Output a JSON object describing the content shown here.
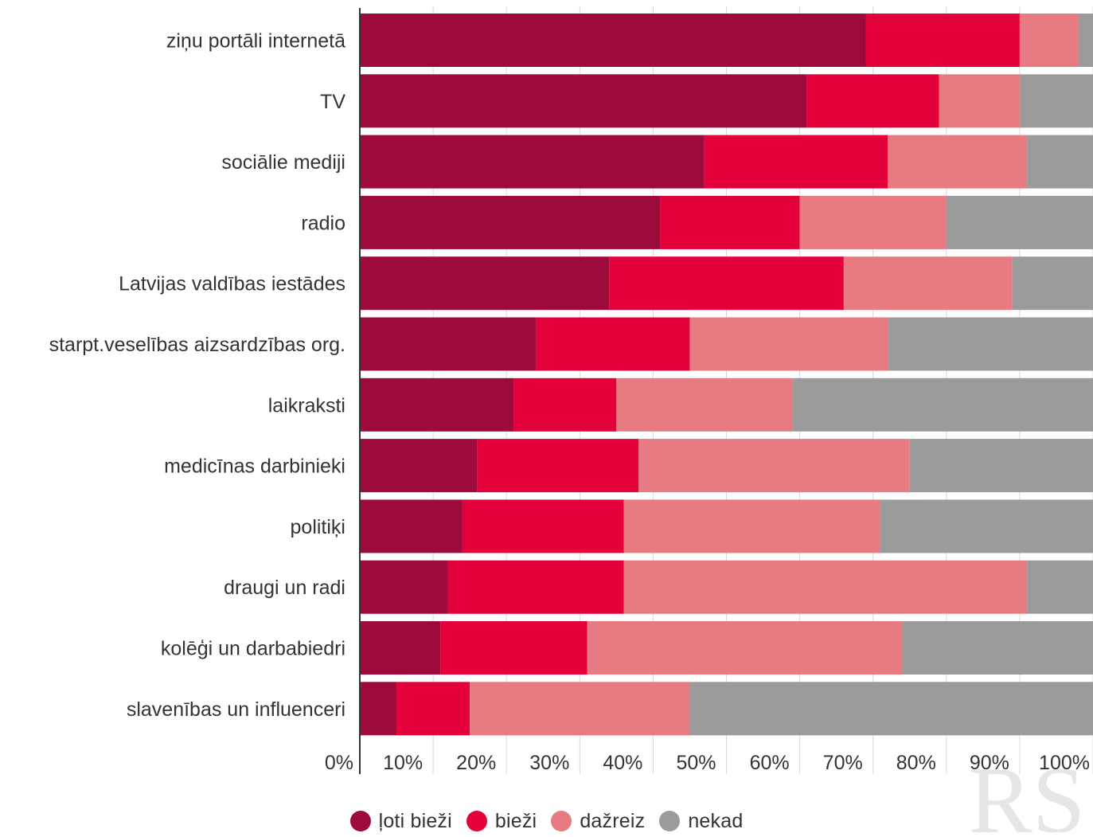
{
  "chart_data": {
    "type": "bar",
    "orientation": "horizontal",
    "stacked": true,
    "percent_stacked": true,
    "categories": [
      "ziņu portāli internetā",
      "TV",
      "sociālie mediji",
      "radio",
      "Latvijas valdības iestādes",
      "starpt.veselības aizsardzības org.",
      "laikraksti",
      "medicīnas darbinieki",
      "politiķi",
      "draugi un radi",
      "kolēģi un darbabiedri",
      "slavenības un influenceri"
    ],
    "series": [
      {
        "name": "ļoti bieži",
        "color": "#9e0a3c",
        "values": [
          69,
          61,
          47,
          41,
          34,
          24,
          21,
          16,
          14,
          12,
          11,
          5
        ]
      },
      {
        "name": "bieži",
        "color": "#e4003a",
        "values": [
          21,
          18,
          25,
          19,
          32,
          21,
          14,
          22,
          22,
          24,
          20,
          10
        ]
      },
      {
        "name": "dažreiz",
        "color": "#e87a82",
        "values": [
          8,
          11,
          19,
          20,
          23,
          27,
          24,
          37,
          35,
          55,
          43,
          30
        ]
      },
      {
        "name": "nekad",
        "color": "#9b9b9b",
        "values": [
          2,
          10,
          9,
          20,
          11,
          28,
          41,
          25,
          29,
          9,
          26,
          55
        ]
      }
    ],
    "x_ticks": [
      "0%",
      "10%",
      "20%",
      "30%",
      "40%",
      "50%",
      "60%",
      "70%",
      "80%",
      "90%",
      "100%"
    ],
    "xlim": [
      0,
      100
    ],
    "grid": true,
    "legend_position": "bottom-center",
    "title": "",
    "xlabel": "",
    "ylabel": ""
  },
  "watermark": {
    "text": "RS",
    "color": "#e6e6e6"
  },
  "colors": {
    "axis": "#333333",
    "grid": "#d9d9d9",
    "text": "#333333"
  }
}
